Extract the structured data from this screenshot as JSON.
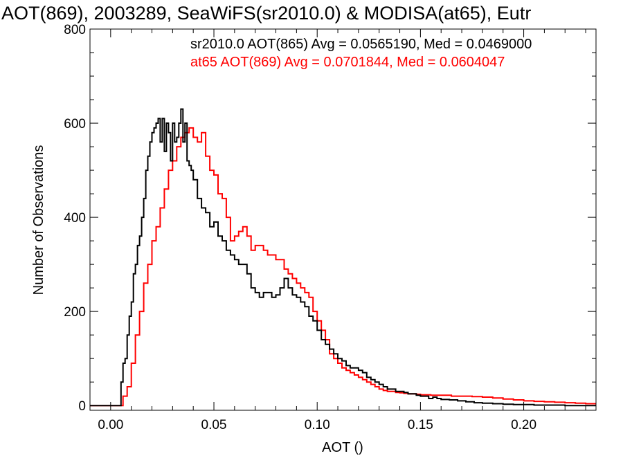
{
  "chart_data": {
    "type": "line",
    "title": "AOT(869), 2003289, SeaWiFS(sr2010.0) & MODISA(at65), Eutr",
    "xlabel": "AOT ()",
    "ylabel": "Number of Observations",
    "xlim": [
      -0.01,
      0.235
    ],
    "ylim": [
      -10,
      800
    ],
    "x_ticks": [
      0.0,
      0.05,
      0.1,
      0.15,
      0.2
    ],
    "x_tick_labels": [
      "0.00",
      "0.05",
      "0.10",
      "0.15",
      "0.20"
    ],
    "y_ticks": [
      0,
      200,
      400,
      600,
      800
    ],
    "y_tick_labels": [
      "0",
      "200",
      "400",
      "600",
      "800"
    ],
    "grid": false,
    "step": true,
    "annotations": [
      {
        "text": "sr2010.0 AOT(865) Avg = 0.0565190, Med = 0.0469000",
        "color": "#000000"
      },
      {
        "text": "at65 AOT(869) Avg = 0.0701844, Med = 0.0604047",
        "color": "#ff0000"
      }
    ],
    "series": [
      {
        "color": "#000000",
        "x": [
          -0.01,
          0.0,
          0.003,
          0.005,
          0.006,
          0.007,
          0.008,
          0.009,
          0.01,
          0.011,
          0.012,
          0.013,
          0.014,
          0.015,
          0.016,
          0.017,
          0.018,
          0.019,
          0.02,
          0.021,
          0.022,
          0.023,
          0.024,
          0.025,
          0.026,
          0.027,
          0.028,
          0.029,
          0.03,
          0.031,
          0.032,
          0.033,
          0.034,
          0.035,
          0.036,
          0.037,
          0.038,
          0.039,
          0.04,
          0.042,
          0.044,
          0.046,
          0.048,
          0.05,
          0.052,
          0.054,
          0.056,
          0.058,
          0.06,
          0.062,
          0.064,
          0.066,
          0.068,
          0.07,
          0.072,
          0.074,
          0.076,
          0.078,
          0.08,
          0.082,
          0.084,
          0.086,
          0.088,
          0.09,
          0.092,
          0.094,
          0.096,
          0.098,
          0.1,
          0.102,
          0.104,
          0.106,
          0.108,
          0.11,
          0.112,
          0.114,
          0.116,
          0.118,
          0.12,
          0.122,
          0.124,
          0.126,
          0.128,
          0.13,
          0.132,
          0.134,
          0.136,
          0.138,
          0.14,
          0.142,
          0.144,
          0.146,
          0.148,
          0.15,
          0.152,
          0.154,
          0.156,
          0.158,
          0.16,
          0.164,
          0.168,
          0.172,
          0.176,
          0.18,
          0.185,
          0.19,
          0.195,
          0.2,
          0.205,
          0.21,
          0.215,
          0.22,
          0.225,
          0.23,
          0.235
        ],
        "y": [
          0,
          0,
          0,
          50,
          90,
          100,
          150,
          190,
          220,
          280,
          300,
          340,
          360,
          400,
          440,
          500,
          530,
          560,
          580,
          590,
          600,
          610,
          560,
          610,
          540,
          600,
          580,
          520,
          600,
          560,
          570,
          600,
          630,
          560,
          600,
          520,
          510,
          500,
          480,
          440,
          420,
          410,
          380,
          390,
          360,
          350,
          330,
          320,
          310,
          300,
          300,
          280,
          250,
          240,
          230,
          240,
          240,
          230,
          235,
          250,
          270,
          250,
          235,
          230,
          220,
          210,
          190,
          180,
          160,
          140,
          130,
          120,
          110,
          100,
          95,
          85,
          80,
          80,
          75,
          70,
          60,
          55,
          50,
          45,
          40,
          35,
          35,
          30,
          30,
          28,
          25,
          25,
          22,
          20,
          20,
          15,
          18,
          15,
          13,
          12,
          10,
          8,
          6,
          5,
          4,
          3,
          2,
          2,
          1,
          1,
          1,
          0,
          0,
          0,
          0
        ]
      },
      {
        "color": "#ff0000",
        "x": [
          -0.01,
          0.003,
          0.006,
          0.008,
          0.01,
          0.012,
          0.014,
          0.016,
          0.018,
          0.02,
          0.022,
          0.024,
          0.026,
          0.028,
          0.03,
          0.032,
          0.034,
          0.036,
          0.038,
          0.04,
          0.042,
          0.044,
          0.046,
          0.048,
          0.05,
          0.052,
          0.054,
          0.056,
          0.058,
          0.06,
          0.062,
          0.064,
          0.066,
          0.068,
          0.07,
          0.072,
          0.074,
          0.076,
          0.078,
          0.08,
          0.082,
          0.084,
          0.086,
          0.088,
          0.09,
          0.092,
          0.094,
          0.096,
          0.098,
          0.1,
          0.102,
          0.104,
          0.106,
          0.108,
          0.11,
          0.112,
          0.114,
          0.116,
          0.118,
          0.12,
          0.122,
          0.124,
          0.126,
          0.128,
          0.13,
          0.132,
          0.134,
          0.136,
          0.138,
          0.14,
          0.142,
          0.144,
          0.146,
          0.148,
          0.15,
          0.155,
          0.16,
          0.165,
          0.17,
          0.175,
          0.18,
          0.185,
          0.19,
          0.195,
          0.2,
          0.205,
          0.21,
          0.215,
          0.22,
          0.225,
          0.23,
          0.235
        ],
        "y": [
          0,
          0,
          20,
          40,
          90,
          150,
          200,
          260,
          300,
          350,
          380,
          420,
          460,
          500,
          520,
          550,
          570,
          580,
          590,
          570,
          560,
          580,
          530,
          500,
          490,
          450,
          440,
          400,
          350,
          360,
          370,
          380,
          360,
          330,
          340,
          340,
          330,
          320,
          320,
          310,
          310,
          290,
          280,
          270,
          260,
          250,
          240,
          230,
          200,
          180,
          160,
          140,
          110,
          100,
          90,
          80,
          75,
          70,
          65,
          60,
          55,
          50,
          45,
          40,
          35,
          32,
          30,
          30,
          28,
          27,
          26,
          25,
          25,
          24,
          23,
          22,
          22,
          20,
          20,
          19,
          18,
          16,
          14,
          12,
          10,
          9,
          8,
          7,
          6,
          5,
          4,
          2
        ]
      }
    ]
  }
}
